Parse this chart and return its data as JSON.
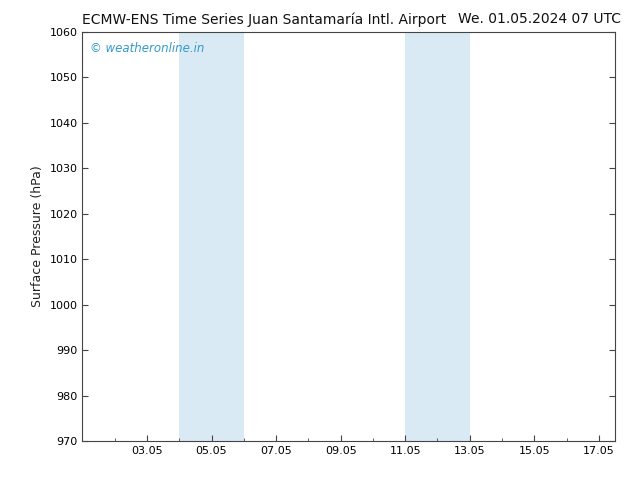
{
  "title_left": "ECMW-ENS Time Series Juan Santamaría Intl. Airport",
  "title_right": "We. 01.05.2024 07 UTC",
  "ylabel": "Surface Pressure (hPa)",
  "xlim": [
    1.05,
    17.55
  ],
  "ylim": [
    970,
    1060
  ],
  "yticks": [
    970,
    980,
    990,
    1000,
    1010,
    1020,
    1030,
    1040,
    1050,
    1060
  ],
  "xtick_positions": [
    3.05,
    5.05,
    7.05,
    9.05,
    11.05,
    13.05,
    15.05,
    17.05
  ],
  "xtick_labels": [
    "03.05",
    "05.05",
    "07.05",
    "09.05",
    "11.05",
    "13.05",
    "15.05",
    "17.05"
  ],
  "shaded_bands": [
    {
      "xmin": 4.05,
      "xmax": 6.05
    },
    {
      "xmin": 11.05,
      "xmax": 13.05
    }
  ],
  "band_color": "#daeaf5",
  "background_color": "#ffffff",
  "spine_color": "#444444",
  "watermark_text": "© weatheronline.in",
  "watermark_color": "#3399cc",
  "title_fontsize": 10,
  "axis_label_fontsize": 9,
  "tick_label_fontsize": 8,
  "watermark_fontsize": 8.5
}
